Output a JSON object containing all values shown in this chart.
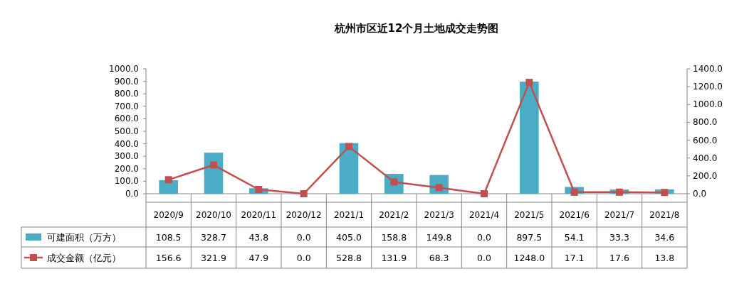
{
  "chart_data": {
    "type": "bar",
    "title": "杭州市区近12个月土地成交走势图",
    "categories": [
      "2020/9",
      "2020/10",
      "2020/11",
      "2020/12",
      "2021/1",
      "2021/2",
      "2021/3",
      "2021/4",
      "2021/5",
      "2021/6",
      "2021/7",
      "2021/8"
    ],
    "series": [
      {
        "name": "可建面积（万方）",
        "color": "#4bacc6",
        "values": [
          108.5,
          328.7,
          43.8,
          0.0,
          405.0,
          158.8,
          149.8,
          0.0,
          897.5,
          54.1,
          33.3,
          34.6
        ],
        "value_labels": [
          "108.5",
          "328.7",
          "43.8",
          "0.0",
          "405.0",
          "158.8",
          "149.8",
          "0.0",
          "897.5",
          "54.1",
          "33.3",
          "34.6"
        ]
      },
      {
        "name": "成交金额（亿元）",
        "type": "line",
        "axis": "y2",
        "color": "#c0504d",
        "values": [
          156.6,
          321.9,
          47.9,
          0.0,
          528.8,
          131.9,
          68.3,
          0.0,
          1248.0,
          17.1,
          17.6,
          13.8
        ],
        "value_labels": [
          "156.6",
          "321.9",
          "47.9",
          "0.0",
          "528.8",
          "131.9",
          "68.3",
          "0.0",
          "1248.0",
          "17.1",
          "17.6",
          "13.8"
        ]
      }
    ],
    "marker": "square",
    "grid": false,
    "legend": "bottom left",
    "ylim": [
      0,
      1000
    ],
    "yticks": [
      {
        "value": 0,
        "label": "0.0"
      },
      {
        "value": 100,
        "label": "100.0"
      },
      {
        "value": 200,
        "label": "200.0"
      },
      {
        "value": 300,
        "label": "300.0"
      },
      {
        "value": 400,
        "label": "400.0"
      },
      {
        "value": 500,
        "label": "500.0"
      },
      {
        "value": 600,
        "label": "600.0"
      },
      {
        "value": 700,
        "label": "700.0"
      },
      {
        "value": 800,
        "label": "800.0"
      },
      {
        "value": 900,
        "label": "900.0"
      },
      {
        "value": 1000,
        "label": "1000.0"
      }
    ],
    "y2lim": [
      0,
      1400
    ],
    "y2ticks": [
      {
        "value": 0,
        "label": "0.0"
      },
      {
        "value": 200,
        "label": "200.0"
      },
      {
        "value": 400,
        "label": "400.0"
      },
      {
        "value": 600,
        "label": "600.0"
      },
      {
        "value": 800,
        "label": "800.0"
      },
      {
        "value": 1000,
        "label": "1000.0"
      },
      {
        "value": 1200,
        "label": "1200.0"
      },
      {
        "value": 1400,
        "label": "1400.0"
      }
    ]
  }
}
